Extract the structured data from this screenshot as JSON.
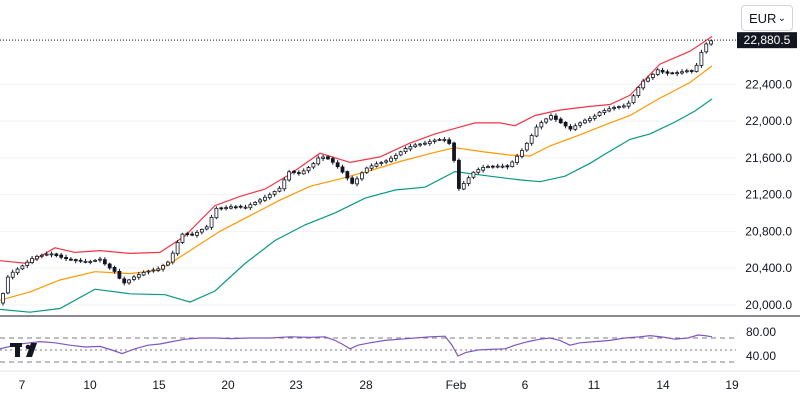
{
  "currency_selector": {
    "value": "EUR",
    "icon": "chevron-down-icon"
  },
  "logo": {
    "icon": "tradingview-logo-icon"
  },
  "colors": {
    "candle_up": "#ffffff",
    "candle_down": "#131722",
    "candle_border": "#131722",
    "upper_band": "#f23645",
    "middle_band": "#ff9800",
    "lower_band": "#089981",
    "rsi_line": "#7e57c2",
    "last_price_bg": "#131722",
    "grid": "#f0f3fa"
  },
  "chart_data": [
    {
      "type": "candlestick",
      "title": "",
      "ylim": [
        19900,
        23100
      ],
      "y_ticks": [
        "20,000.0",
        "20,400.0",
        "20,800.0",
        "21,200.0",
        "21,600.0",
        "22,000.0",
        "22,400.0"
      ],
      "x_ticks": [
        "7",
        "10",
        "15",
        "20",
        "23",
        "28",
        "Feb",
        "6",
        "11",
        "14",
        "19"
      ],
      "last_price_label": "22,880.5",
      "last_price": 22880.5,
      "indicators": [
        "Bollinger Bands upper",
        "Bollinger Bands basis",
        "Bollinger Bands lower"
      ],
      "close_path": [
        [
          1,
          20020
        ],
        [
          6,
          20280
        ],
        [
          12,
          20350
        ],
        [
          22,
          20420
        ],
        [
          34,
          20520
        ],
        [
          50,
          20560
        ],
        [
          63,
          20510
        ],
        [
          75,
          20480
        ],
        [
          90,
          20470
        ],
        [
          101,
          20500
        ],
        [
          106,
          20430
        ],
        [
          115,
          20360
        ],
        [
          123,
          20230
        ],
        [
          135,
          20310
        ],
        [
          145,
          20360
        ],
        [
          158,
          20390
        ],
        [
          170,
          20480
        ],
        [
          175,
          20630
        ],
        [
          183,
          20780
        ],
        [
          193,
          20760
        ],
        [
          200,
          20810
        ],
        [
          207,
          20850
        ],
        [
          216,
          21050
        ],
        [
          222,
          21050
        ],
        [
          232,
          21070
        ],
        [
          245,
          21060
        ],
        [
          258,
          21130
        ],
        [
          270,
          21200
        ],
        [
          281,
          21280
        ],
        [
          288,
          21450
        ],
        [
          300,
          21430
        ],
        [
          312,
          21520
        ],
        [
          320,
          21620
        ],
        [
          330,
          21580
        ],
        [
          340,
          21480
        ],
        [
          345,
          21410
        ],
        [
          352,
          21320
        ],
        [
          358,
          21380
        ],
        [
          365,
          21480
        ],
        [
          375,
          21530
        ],
        [
          385,
          21560
        ],
        [
          395,
          21620
        ],
        [
          405,
          21700
        ],
        [
          415,
          21740
        ],
        [
          425,
          21760
        ],
        [
          437,
          21800
        ],
        [
          447,
          21800
        ],
        [
          452,
          21700
        ],
        [
          459,
          21260
        ],
        [
          466,
          21350
        ],
        [
          474,
          21450
        ],
        [
          484,
          21500
        ],
        [
          494,
          21510
        ],
        [
          502,
          21510
        ],
        [
          508,
          21500
        ],
        [
          515,
          21590
        ],
        [
          522,
          21680
        ],
        [
          530,
          21810
        ],
        [
          536,
          21930
        ],
        [
          543,
          22000
        ],
        [
          551,
          22060
        ],
        [
          558,
          22000
        ],
        [
          564,
          21960
        ],
        [
          570,
          21910
        ],
        [
          577,
          21960
        ],
        [
          585,
          22010
        ],
        [
          593,
          22040
        ],
        [
          600,
          22100
        ],
        [
          611,
          22140
        ],
        [
          620,
          22160
        ],
        [
          627,
          22170
        ],
        [
          631,
          22230
        ],
        [
          636,
          22320
        ],
        [
          641,
          22420
        ],
        [
          647,
          22460
        ],
        [
          653,
          22510
        ],
        [
          658,
          22560
        ],
        [
          665,
          22520
        ],
        [
          672,
          22520
        ],
        [
          679,
          22530
        ],
        [
          688,
          22550
        ],
        [
          695,
          22540
        ],
        [
          698,
          22670
        ],
        [
          705,
          22830
        ],
        [
          712,
          22880
        ]
      ],
      "upper_band_path": [
        [
          0,
          20480
        ],
        [
          28,
          20450
        ],
        [
          55,
          20620
        ],
        [
          75,
          20570
        ],
        [
          100,
          20590
        ],
        [
          130,
          20560
        ],
        [
          160,
          20570
        ],
        [
          185,
          20750
        ],
        [
          215,
          21080
        ],
        [
          240,
          21180
        ],
        [
          265,
          21260
        ],
        [
          290,
          21420
        ],
        [
          320,
          21650
        ],
        [
          350,
          21550
        ],
        [
          380,
          21610
        ],
        [
          410,
          21760
        ],
        [
          435,
          21860
        ],
        [
          455,
          21920
        ],
        [
          475,
          21980
        ],
        [
          500,
          21980
        ],
        [
          515,
          21950
        ],
        [
          535,
          22060
        ],
        [
          560,
          22120
        ],
        [
          590,
          22160
        ],
        [
          610,
          22180
        ],
        [
          630,
          22280
        ],
        [
          660,
          22620
        ],
        [
          690,
          22760
        ],
        [
          712,
          22920
        ]
      ],
      "middle_band_path": [
        [
          0,
          20050
        ],
        [
          30,
          20140
        ],
        [
          60,
          20270
        ],
        [
          95,
          20360
        ],
        [
          130,
          20340
        ],
        [
          160,
          20380
        ],
        [
          190,
          20590
        ],
        [
          220,
          20800
        ],
        [
          250,
          20970
        ],
        [
          280,
          21140
        ],
        [
          310,
          21290
        ],
        [
          340,
          21370
        ],
        [
          370,
          21460
        ],
        [
          400,
          21560
        ],
        [
          435,
          21660
        ],
        [
          455,
          21710
        ],
        [
          480,
          21670
        ],
        [
          510,
          21630
        ],
        [
          530,
          21620
        ],
        [
          550,
          21730
        ],
        [
          580,
          21850
        ],
        [
          610,
          21980
        ],
        [
          630,
          22060
        ],
        [
          660,
          22250
        ],
        [
          690,
          22420
        ],
        [
          712,
          22600
        ]
      ],
      "lower_band_path": [
        [
          0,
          19950
        ],
        [
          30,
          19920
        ],
        [
          60,
          19960
        ],
        [
          95,
          20170
        ],
        [
          130,
          20120
        ],
        [
          165,
          20110
        ],
        [
          190,
          20030
        ],
        [
          215,
          20150
        ],
        [
          245,
          20450
        ],
        [
          275,
          20700
        ],
        [
          305,
          20870
        ],
        [
          335,
          21000
        ],
        [
          365,
          21160
        ],
        [
          395,
          21250
        ],
        [
          425,
          21280
        ],
        [
          455,
          21450
        ],
        [
          490,
          21400
        ],
        [
          520,
          21360
        ],
        [
          540,
          21340
        ],
        [
          565,
          21400
        ],
        [
          590,
          21540
        ],
        [
          605,
          21640
        ],
        [
          630,
          21800
        ],
        [
          650,
          21860
        ],
        [
          675,
          21990
        ],
        [
          695,
          22110
        ],
        [
          712,
          22240
        ]
      ]
    },
    {
      "type": "line",
      "title": "",
      "ylim": [
        20,
        100
      ],
      "y_ticks": [
        "80.00",
        "40.00"
      ],
      "reference_lines": [
        70,
        50,
        30
      ],
      "series": [
        {
          "values": [
            [
              0,
              52
            ],
            [
              10,
              56
            ],
            [
              20,
              60
            ],
            [
              30,
              62
            ],
            [
              40,
              64
            ],
            [
              55,
              62
            ],
            [
              70,
              58
            ],
            [
              85,
              55
            ],
            [
              100,
              56
            ],
            [
              112,
              50
            ],
            [
              122,
              44
            ],
            [
              135,
              52
            ],
            [
              148,
              58
            ],
            [
              160,
              60
            ],
            [
              172,
              64
            ],
            [
              185,
              68
            ],
            [
              200,
              70
            ],
            [
              215,
              70
            ],
            [
              230,
              69
            ],
            [
              250,
              70
            ],
            [
              270,
              70
            ],
            [
              290,
              72
            ],
            [
              310,
              71
            ],
            [
              325,
              72
            ],
            [
              335,
              66
            ],
            [
              342,
              60
            ],
            [
              350,
              52
            ],
            [
              358,
              58
            ],
            [
              370,
              62
            ],
            [
              385,
              66
            ],
            [
              400,
              68
            ],
            [
              415,
              70
            ],
            [
              430,
              72
            ],
            [
              445,
              73
            ],
            [
              452,
              58
            ],
            [
              458,
              40
            ],
            [
              466,
              46
            ],
            [
              478,
              50
            ],
            [
              490,
              51
            ],
            [
              505,
              52
            ],
            [
              515,
              58
            ],
            [
              528,
              64
            ],
            [
              540,
              68
            ],
            [
              550,
              70
            ],
            [
              560,
              66
            ],
            [
              570,
              58
            ],
            [
              580,
              62
            ],
            [
              595,
              64
            ],
            [
              610,
              66
            ],
            [
              625,
              70
            ],
            [
              640,
              72
            ],
            [
              650,
              74
            ],
            [
              665,
              71
            ],
            [
              675,
              68
            ],
            [
              688,
              70
            ],
            [
              698,
              75
            ],
            [
              705,
              74
            ],
            [
              712,
              72
            ]
          ]
        }
      ]
    }
  ]
}
